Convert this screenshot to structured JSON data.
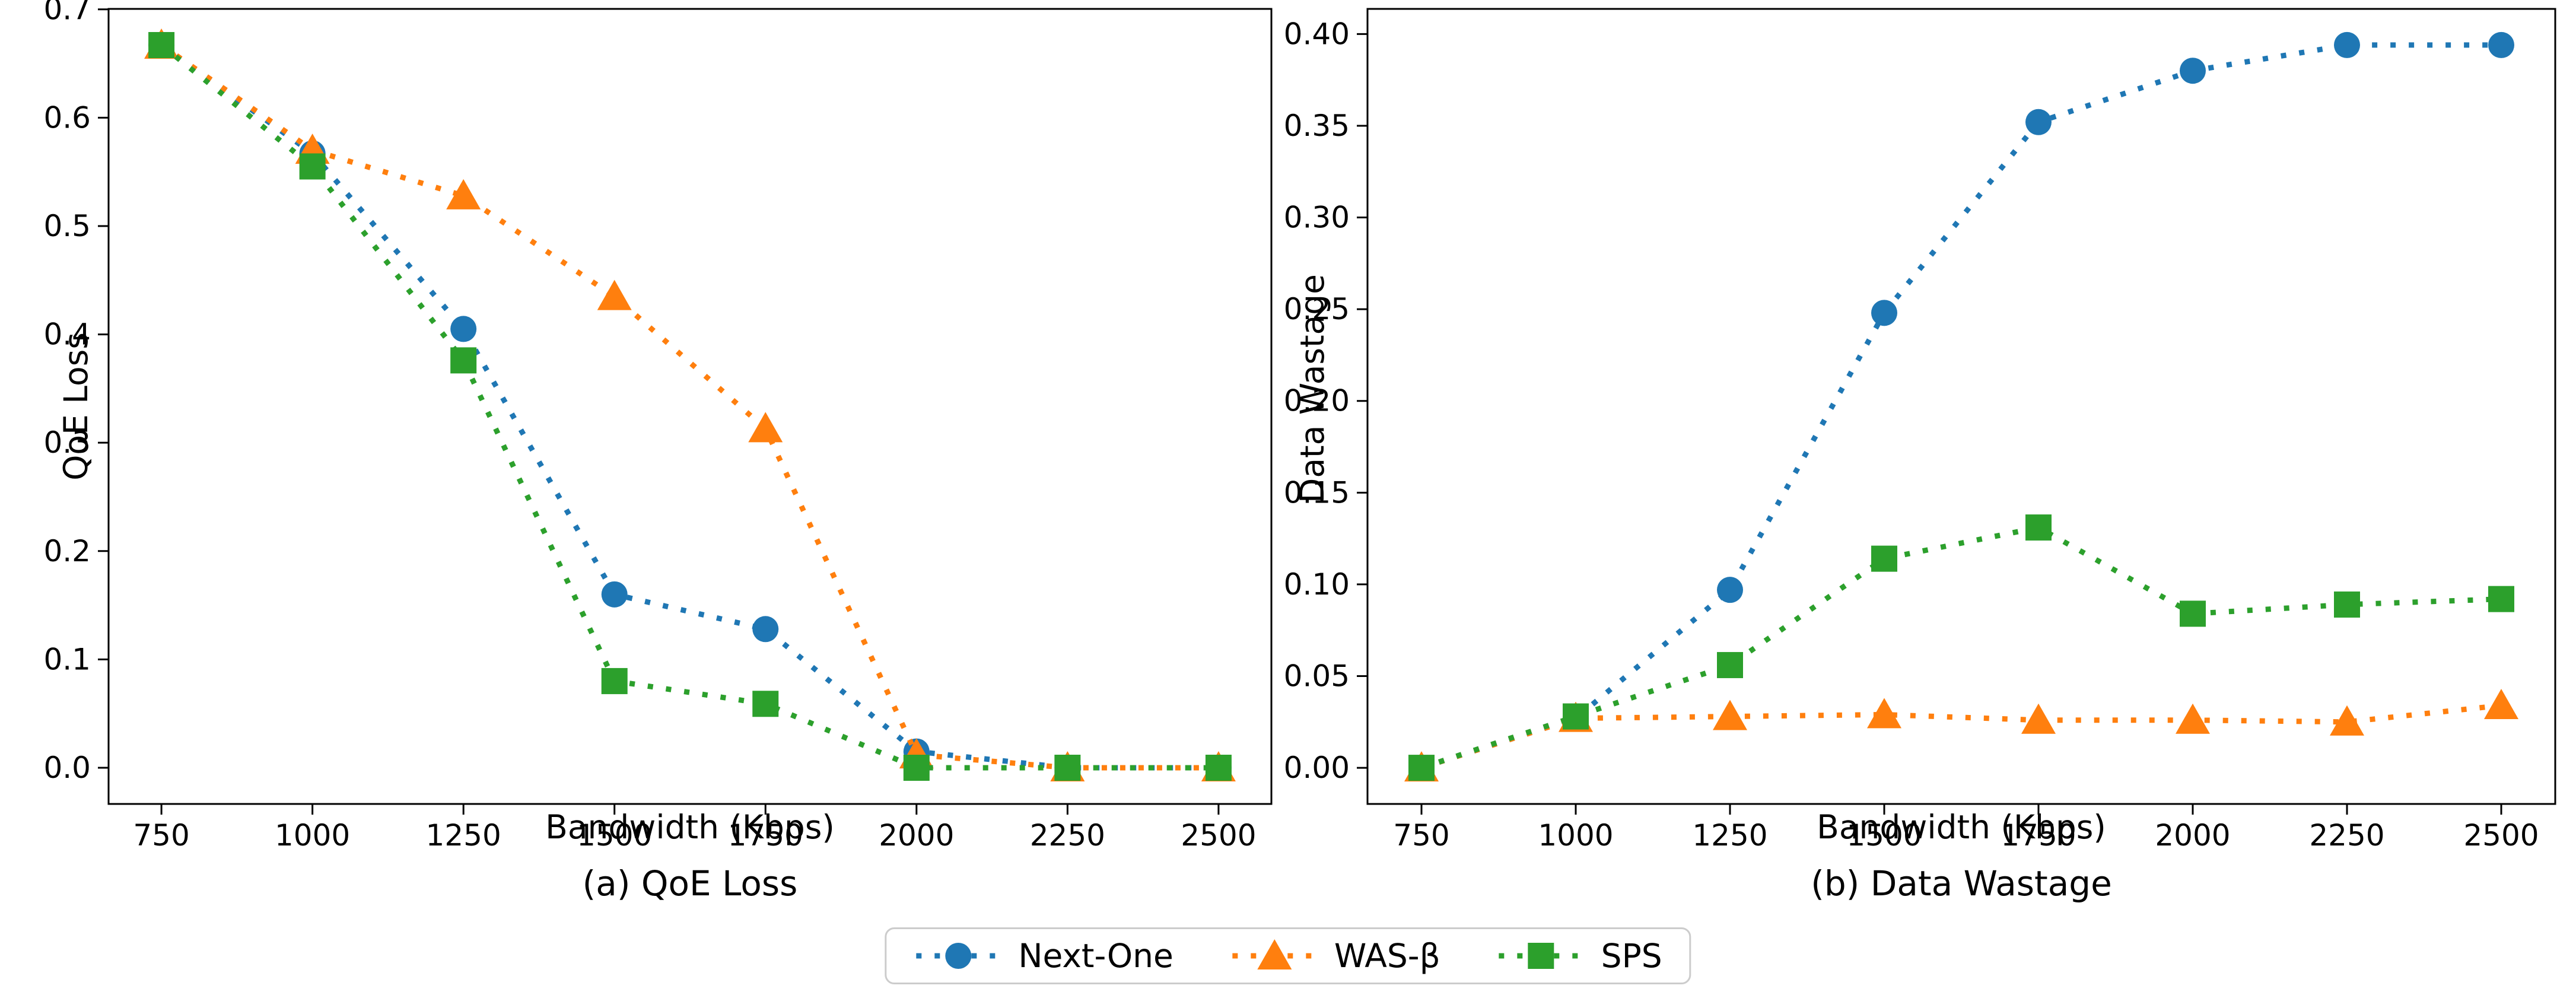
{
  "figure": {
    "background": "#ffffff",
    "text_color": "#000000",
    "legend": {
      "items": [
        {
          "name": "Next-One",
          "marker": "circle",
          "color": "#1f77b4"
        },
        {
          "name": "WAS-β",
          "marker": "triangle",
          "color": "#ff7f0e"
        },
        {
          "name": "SPS",
          "marker": "square",
          "color": "#2ca02c"
        }
      ]
    }
  },
  "chart_data": [
    {
      "type": "line",
      "line_style": "dotted",
      "title": "(a) QoE Loss",
      "xlabel": "Bandwidth (Kbps)",
      "ylabel": "QoE Loss",
      "grid": false,
      "legend_position": "figure-bottom-center",
      "x": [
        750,
        1000,
        1250,
        1500,
        1750,
        2000,
        2250,
        2500
      ],
      "x_tick_labels": [
        "750",
        "1000",
        "1250",
        "1500",
        "1750",
        "2000",
        "2250",
        "2500"
      ],
      "y_ticks": [
        0.0,
        0.1,
        0.2,
        0.3,
        0.4,
        0.5,
        0.6,
        0.7
      ],
      "y_tick_labels": [
        "0.0",
        "0.1",
        "0.2",
        "0.3",
        "0.4",
        "0.5",
        "0.6",
        "0.7"
      ],
      "xlim": [
        662.5,
        2587.5
      ],
      "ylim": [
        -0.0334,
        0.7004
      ],
      "series": [
        {
          "name": "Next-One",
          "marker": "circle",
          "color": "#1f77b4",
          "values": [
            0.667,
            0.567,
            0.405,
            0.16,
            0.128,
            0.015,
            0.0,
            0.0
          ]
        },
        {
          "name": "WAS-β",
          "marker": "triangle",
          "color": "#ff7f0e",
          "values": [
            0.667,
            0.57,
            0.528,
            0.435,
            0.313,
            0.012,
            0.0,
            0.0
          ]
        },
        {
          "name": "SPS",
          "marker": "square",
          "color": "#2ca02c",
          "values": [
            0.667,
            0.555,
            0.376,
            0.08,
            0.059,
            0.0,
            0.0,
            0.0
          ]
        }
      ]
    },
    {
      "type": "line",
      "line_style": "dotted",
      "title": "(b) Data Wastage",
      "xlabel": "Bandwidth (Kbps)",
      "ylabel": "Data Wastage",
      "grid": false,
      "legend_position": "figure-bottom-center",
      "x": [
        750,
        1000,
        1250,
        1500,
        1750,
        2000,
        2250,
        2500
      ],
      "x_tick_labels": [
        "750",
        "1000",
        "1250",
        "1500",
        "1750",
        "2000",
        "2250",
        "2500"
      ],
      "y_ticks": [
        0.0,
        0.05,
        0.1,
        0.15,
        0.2,
        0.25,
        0.3,
        0.35,
        0.4
      ],
      "y_tick_labels": [
        "0.00",
        "0.05",
        "0.10",
        "0.15",
        "0.20",
        "0.25",
        "0.30",
        "0.35",
        "0.40"
      ],
      "xlim": [
        662.5,
        2587.5
      ],
      "ylim": [
        -0.0197,
        0.4137
      ],
      "series": [
        {
          "name": "Next-One",
          "marker": "circle",
          "color": "#1f77b4",
          "values": [
            0.0,
            0.027,
            0.097,
            0.248,
            0.352,
            0.38,
            0.394,
            0.394
          ]
        },
        {
          "name": "WAS-β",
          "marker": "triangle",
          "color": "#ff7f0e",
          "values": [
            0.0,
            0.027,
            0.028,
            0.029,
            0.026,
            0.026,
            0.025,
            0.034
          ]
        },
        {
          "name": "SPS",
          "marker": "square",
          "color": "#2ca02c",
          "values": [
            0.0,
            0.028,
            0.056,
            0.114,
            0.131,
            0.084,
            0.089,
            0.092
          ]
        }
      ]
    }
  ]
}
